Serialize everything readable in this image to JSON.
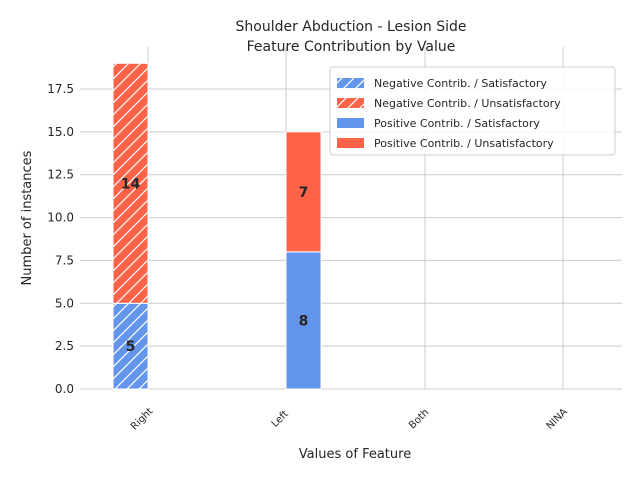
{
  "chart_data": {
    "type": "bar",
    "stacked": true,
    "title_lines": [
      "Shoulder Abduction - Lesion Side",
      "Feature Contribution by Value"
    ],
    "xlabel": "Values of Feature",
    "ylabel": "Number of instances",
    "categories": [
      "Right",
      "Left",
      "Both",
      "NINA"
    ],
    "ylim": [
      0,
      19.95
    ],
    "yticks": [
      0.0,
      2.5,
      5.0,
      7.5,
      10.0,
      12.5,
      15.0,
      17.5
    ],
    "ytick_labels": [
      "0.0",
      "2.5",
      "5.0",
      "7.5",
      "10.0",
      "12.5",
      "15.0",
      "17.5"
    ],
    "grid": true,
    "legend_position": "upper right",
    "colors": {
      "satisfactory": "#6495ed",
      "unsatisfactory": "#ff6347"
    },
    "series": [
      {
        "name": "Negative Contrib. / Satisfactory",
        "group": "negative",
        "outcome": "satisfactory",
        "hatch": true,
        "values": [
          5,
          0,
          0,
          0
        ]
      },
      {
        "name": "Negative Contrib. / Unsatisfactory",
        "group": "negative",
        "outcome": "unsatisfactory",
        "hatch": true,
        "values": [
          14,
          0,
          0,
          0
        ]
      },
      {
        "name": "Positive Contrib. / Satisfactory",
        "group": "positive",
        "outcome": "satisfactory",
        "hatch": false,
        "values": [
          0,
          8,
          0,
          0
        ]
      },
      {
        "name": "Positive Contrib. / Unsatisfactory",
        "group": "positive",
        "outcome": "unsatisfactory",
        "hatch": false,
        "values": [
          0,
          7,
          0,
          0
        ]
      }
    ]
  }
}
